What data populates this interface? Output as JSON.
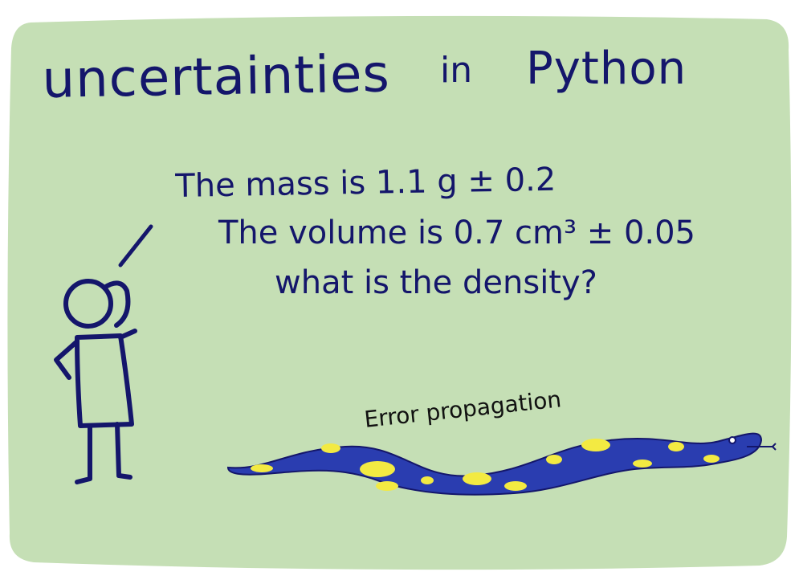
{
  "comic": {
    "title": "uncertainties",
    "title_in": "in",
    "title_python": "Python",
    "speech": {
      "line1": "The mass is 1.1 g ± 0.2",
      "line2": "The volume is 0.7 cm³ ± 0.05",
      "line3": "what is the density?"
    },
    "snake_label": "Error propagation",
    "colors": {
      "panel": "#c5dfb5",
      "ink": "#14166b",
      "snake_body": "#2a3db0",
      "snake_spots": "#f3ea42"
    },
    "icons": {
      "person": "stick-figure-icon",
      "snake": "python-snake-icon"
    }
  }
}
